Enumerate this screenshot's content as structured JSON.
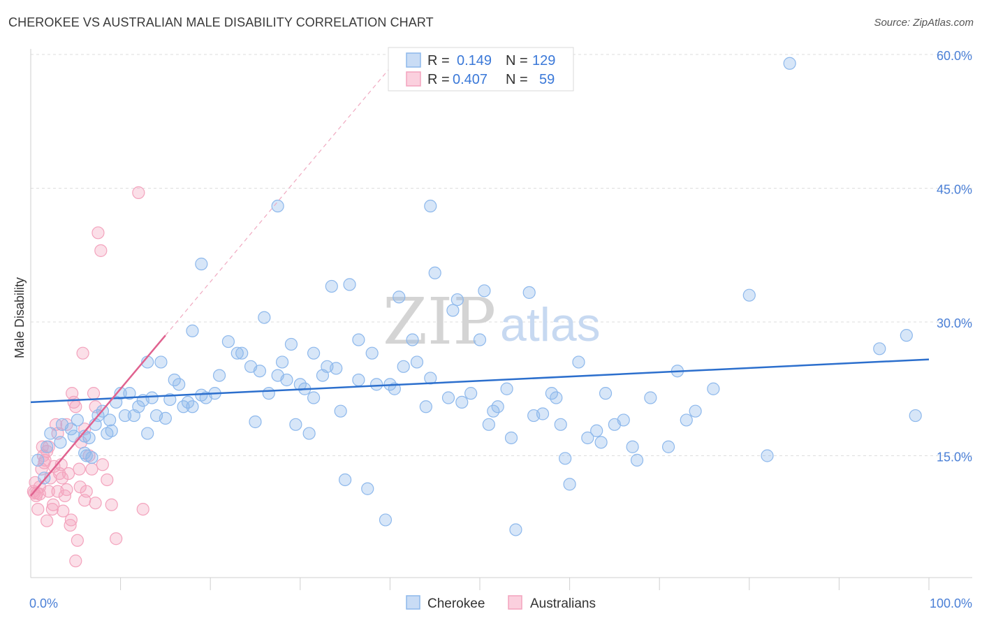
{
  "title": "CHEROKEE VS AUSTRALIAN MALE DISABILITY CORRELATION CHART",
  "source": "Source: ZipAtlas.com",
  "watermark": {
    "zip": "ZIP",
    "atlas": "atlas"
  },
  "legend": {
    "rows": [
      {
        "r_label": "R =",
        "r_value": "0.149",
        "n_label": "N =",
        "n_value": "129",
        "color": "#8db8ec"
      },
      {
        "r_label": "R =",
        "r_value": "0.407",
        "n_label": "N =",
        "n_value": "59",
        "color": "#f3a3bd"
      }
    ]
  },
  "bottom_legend": [
    {
      "label": "Cherokee",
      "color": "#8db8ec"
    },
    {
      "label": "Australians",
      "color": "#f3a3bd"
    }
  ],
  "chart_data": {
    "type": "scatter",
    "title": "CHEROKEE VS AUSTRALIAN MALE DISABILITY CORRELATION CHART",
    "xlabel": "",
    "ylabel": "Male Disability",
    "xlim": [
      0,
      100
    ],
    "ylim": [
      0,
      60
    ],
    "x_tick_labels": [
      "0.0%",
      "100.0%"
    ],
    "y_tick_labels": [
      "15.0%",
      "30.0%",
      "45.0%",
      "60.0%"
    ],
    "y_ticks": [
      15,
      30,
      45,
      60
    ],
    "grid": true,
    "legend_position": "top-center",
    "series": [
      {
        "name": "Cherokee",
        "color": "#8db8ec",
        "line_color": "#2c6fcd",
        "trend": {
          "x": [
            0,
            100
          ],
          "y": [
            21.0,
            25.8
          ]
        },
        "points": [
          [
            0.8,
            14.5
          ],
          [
            1.5,
            12.5
          ],
          [
            1.8,
            16.0
          ],
          [
            2.2,
            17.5
          ],
          [
            3.3,
            16.5
          ],
          [
            3.5,
            18.5
          ],
          [
            4.5,
            18.0
          ],
          [
            4.8,
            17.2
          ],
          [
            5.2,
            19.0
          ],
          [
            6.0,
            15.3
          ],
          [
            6.0,
            17.2
          ],
          [
            6.2,
            15.0
          ],
          [
            6.5,
            17.0
          ],
          [
            6.8,
            14.8
          ],
          [
            7.2,
            18.5
          ],
          [
            7.5,
            19.5
          ],
          [
            8.0,
            20.0
          ],
          [
            8.5,
            17.5
          ],
          [
            8.8,
            19.0
          ],
          [
            9.0,
            17.8
          ],
          [
            9.5,
            21.0
          ],
          [
            10.0,
            22.0
          ],
          [
            10.5,
            19.5
          ],
          [
            11.0,
            22.0
          ],
          [
            11.5,
            19.5
          ],
          [
            12.0,
            20.5
          ],
          [
            12.5,
            21.2
          ],
          [
            13.0,
            17.5
          ],
          [
            13.5,
            21.5
          ],
          [
            14.0,
            19.5
          ],
          [
            15.0,
            19.2
          ],
          [
            15.5,
            21.3
          ],
          [
            16.0,
            23.5
          ],
          [
            16.5,
            23.0
          ],
          [
            17.0,
            20.5
          ],
          [
            17.5,
            21.0
          ],
          [
            18.0,
            20.5
          ],
          [
            19.0,
            21.8
          ],
          [
            19.5,
            21.5
          ],
          [
            13.0,
            25.5
          ],
          [
            14.5,
            25.5
          ],
          [
            18.0,
            29.0
          ],
          [
            19.0,
            36.5
          ],
          [
            20.5,
            22.0
          ],
          [
            21.0,
            24.0
          ],
          [
            22.0,
            27.8
          ],
          [
            23.0,
            26.5
          ],
          [
            23.5,
            26.5
          ],
          [
            24.5,
            25.0
          ],
          [
            25.0,
            18.8
          ],
          [
            25.5,
            24.5
          ],
          [
            26.0,
            30.5
          ],
          [
            26.5,
            22.0
          ],
          [
            27.5,
            24.0
          ],
          [
            28.0,
            25.5
          ],
          [
            28.5,
            23.5
          ],
          [
            29.0,
            27.5
          ],
          [
            29.5,
            18.5
          ],
          [
            30.0,
            23.0
          ],
          [
            30.5,
            22.5
          ],
          [
            31.0,
            17.5
          ],
          [
            31.5,
            21.5
          ],
          [
            31.5,
            26.5
          ],
          [
            32.5,
            24.0
          ],
          [
            33.0,
            25.0
          ],
          [
            33.5,
            34.0
          ],
          [
            34.0,
            24.8
          ],
          [
            34.5,
            20.0
          ],
          [
            35.0,
            12.3
          ],
          [
            35.5,
            34.2
          ],
          [
            36.5,
            23.5
          ],
          [
            36.5,
            28.0
          ],
          [
            37.5,
            11.3
          ],
          [
            38.0,
            26.5
          ],
          [
            38.5,
            23.0
          ],
          [
            39.5,
            7.8
          ],
          [
            40.0,
            23.0
          ],
          [
            40.5,
            22.5
          ],
          [
            41.0,
            32.8
          ],
          [
            41.5,
            25.0
          ],
          [
            42.5,
            28.0
          ],
          [
            43.0,
            25.5
          ],
          [
            44.0,
            20.5
          ],
          [
            44.5,
            23.7
          ],
          [
            44.5,
            43.0
          ],
          [
            45.0,
            35.5
          ],
          [
            46.5,
            21.5
          ],
          [
            47.0,
            31.3
          ],
          [
            47.5,
            32.5
          ],
          [
            48.0,
            21.0
          ],
          [
            49.0,
            22.0
          ],
          [
            50.0,
            28.0
          ],
          [
            50.5,
            33.5
          ],
          [
            51.0,
            18.5
          ],
          [
            51.5,
            20.0
          ],
          [
            52.0,
            20.5
          ],
          [
            53.0,
            22.5
          ],
          [
            53.5,
            17.0
          ],
          [
            54.0,
            6.7
          ],
          [
            55.5,
            33.3
          ],
          [
            56.0,
            19.5
          ],
          [
            57.0,
            19.7
          ],
          [
            58.0,
            22.0
          ],
          [
            58.5,
            21.5
          ],
          [
            59.0,
            18.5
          ],
          [
            59.5,
            14.7
          ],
          [
            60.0,
            11.8
          ],
          [
            61.0,
            25.5
          ],
          [
            62.0,
            17.0
          ],
          [
            63.0,
            17.8
          ],
          [
            63.5,
            16.5
          ],
          [
            64.0,
            22.0
          ],
          [
            65.0,
            18.5
          ],
          [
            66.0,
            19.0
          ],
          [
            67.0,
            16.0
          ],
          [
            67.5,
            14.5
          ],
          [
            69.0,
            21.5
          ],
          [
            71.0,
            16.0
          ],
          [
            72.0,
            24.5
          ],
          [
            73.0,
            19.0
          ],
          [
            74.0,
            20.0
          ],
          [
            76.0,
            22.5
          ],
          [
            80.0,
            33.0
          ],
          [
            82.0,
            15.0
          ],
          [
            84.5,
            59.0
          ],
          [
            94.5,
            27.0
          ],
          [
            97.5,
            28.5
          ],
          [
            98.5,
            19.5
          ],
          [
            27.5,
            43.0
          ]
        ]
      },
      {
        "name": "Australians",
        "color": "#f3a3bd",
        "line_color": "#e0628f",
        "trend": {
          "x": [
            0,
            15
          ],
          "y": [
            10.5,
            28.5
          ]
        },
        "points": [
          [
            0.3,
            11.0
          ],
          [
            0.5,
            12.0
          ],
          [
            0.6,
            10.5
          ],
          [
            0.8,
            9.0
          ],
          [
            1.0,
            11.5
          ],
          [
            1.2,
            13.5
          ],
          [
            1.4,
            15.0
          ],
          [
            1.6,
            14.5
          ],
          [
            1.8,
            15.5
          ],
          [
            2.0,
            16.0
          ],
          [
            2.2,
            12.5
          ],
          [
            2.4,
            9.0
          ],
          [
            2.6,
            13.8
          ],
          [
            2.8,
            18.5
          ],
          [
            3.0,
            17.5
          ],
          [
            3.2,
            13.0
          ],
          [
            3.4,
            14.0
          ],
          [
            3.6,
            8.8
          ],
          [
            3.8,
            10.5
          ],
          [
            4.0,
            18.5
          ],
          [
            4.2,
            13.0
          ],
          [
            4.4,
            7.2
          ],
          [
            4.6,
            22.0
          ],
          [
            4.8,
            21.0
          ],
          [
            5.0,
            20.5
          ],
          [
            5.2,
            5.5
          ],
          [
            5.4,
            13.5
          ],
          [
            5.6,
            16.5
          ],
          [
            5.8,
            26.5
          ],
          [
            6.0,
            18.0
          ],
          [
            6.2,
            11.0
          ],
          [
            6.5,
            15.0
          ],
          [
            7.0,
            22.0
          ],
          [
            7.2,
            20.5
          ],
          [
            7.5,
            40.0
          ],
          [
            7.8,
            38.0
          ],
          [
            8.0,
            14.0
          ],
          [
            8.5,
            12.3
          ],
          [
            9.0,
            9.5
          ],
          [
            9.5,
            5.7
          ],
          [
            12.0,
            44.5
          ],
          [
            12.5,
            9.0
          ],
          [
            0.4,
            10.8
          ],
          [
            0.7,
            10.8
          ],
          [
            1.0,
            10.7
          ],
          [
            1.3,
            16.0
          ],
          [
            1.5,
            14.2
          ],
          [
            2.0,
            11.0
          ],
          [
            2.5,
            9.5
          ],
          [
            3.0,
            11.0
          ],
          [
            3.5,
            12.5
          ],
          [
            4.0,
            11.2
          ],
          [
            4.5,
            7.8
          ],
          [
            5.0,
            3.2
          ],
          [
            5.5,
            11.5
          ],
          [
            6.0,
            10.0
          ],
          [
            6.8,
            13.5
          ],
          [
            7.2,
            9.7
          ],
          [
            1.8,
            7.7
          ]
        ]
      }
    ]
  }
}
